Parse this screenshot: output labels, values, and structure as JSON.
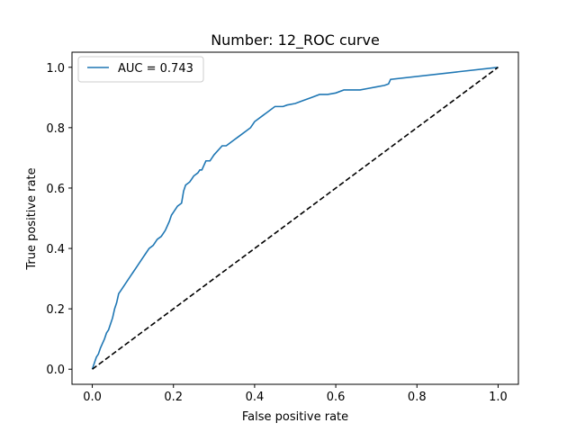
{
  "chart_data": {
    "type": "line",
    "title": "Number: 12_ROC curve",
    "xlabel": "False positive rate",
    "ylabel": "True positive rate",
    "xlim": [
      -0.05,
      1.05
    ],
    "ylim": [
      -0.05,
      1.05
    ],
    "xticks": [
      "0.0",
      "0.2",
      "0.4",
      "0.6",
      "0.8",
      "1.0"
    ],
    "yticks": [
      "0.0",
      "0.2",
      "0.4",
      "0.6",
      "0.8",
      "1.0"
    ],
    "grid": false,
    "legend_position": "upper-left",
    "series": [
      {
        "name": "AUC = 0.743",
        "color": "#1f77b4",
        "style": "solid",
        "x": [
          0.0,
          0.005,
          0.01,
          0.015,
          0.02,
          0.025,
          0.03,
          0.035,
          0.04,
          0.045,
          0.05,
          0.055,
          0.06,
          0.065,
          0.07,
          0.075,
          0.08,
          0.085,
          0.09,
          0.095,
          0.1,
          0.11,
          0.12,
          0.125,
          0.13,
          0.14,
          0.15,
          0.155,
          0.16,
          0.17,
          0.175,
          0.18,
          0.19,
          0.195,
          0.2,
          0.21,
          0.22,
          0.225,
          0.23,
          0.24,
          0.245,
          0.25,
          0.26,
          0.265,
          0.27,
          0.28,
          0.285,
          0.29,
          0.3,
          0.32,
          0.33,
          0.34,
          0.35,
          0.36,
          0.38,
          0.39,
          0.4,
          0.42,
          0.43,
          0.45,
          0.47,
          0.48,
          0.5,
          0.52,
          0.54,
          0.56,
          0.58,
          0.6,
          0.62,
          0.64,
          0.66,
          0.68,
          0.7,
          0.72,
          0.73,
          0.735,
          1.0
        ],
        "y": [
          0.0,
          0.02,
          0.04,
          0.05,
          0.07,
          0.085,
          0.1,
          0.12,
          0.13,
          0.15,
          0.17,
          0.2,
          0.22,
          0.25,
          0.26,
          0.27,
          0.28,
          0.29,
          0.3,
          0.31,
          0.32,
          0.34,
          0.36,
          0.37,
          0.38,
          0.4,
          0.41,
          0.42,
          0.43,
          0.44,
          0.45,
          0.46,
          0.49,
          0.51,
          0.52,
          0.54,
          0.55,
          0.59,
          0.61,
          0.62,
          0.63,
          0.64,
          0.65,
          0.66,
          0.66,
          0.69,
          0.69,
          0.69,
          0.71,
          0.74,
          0.74,
          0.75,
          0.76,
          0.77,
          0.79,
          0.8,
          0.82,
          0.84,
          0.85,
          0.87,
          0.87,
          0.875,
          0.88,
          0.89,
          0.9,
          0.91,
          0.91,
          0.915,
          0.925,
          0.925,
          0.925,
          0.93,
          0.935,
          0.94,
          0.945,
          0.96,
          1.0
        ]
      },
      {
        "name": "",
        "color": "#000000",
        "style": "dashed",
        "x": [
          0.0,
          1.0
        ],
        "y": [
          0.0,
          1.0
        ]
      }
    ]
  }
}
